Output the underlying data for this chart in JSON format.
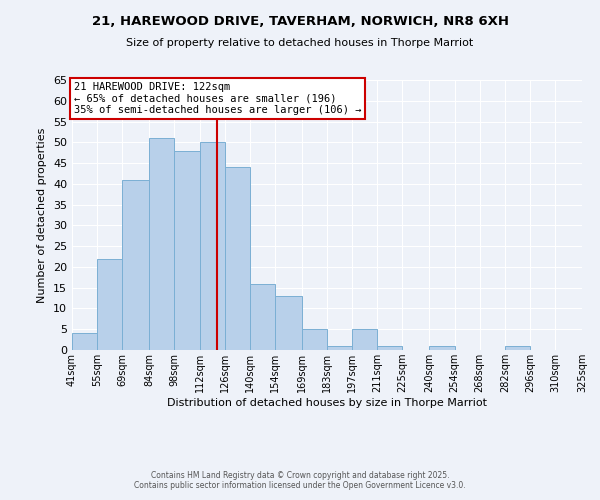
{
  "title": "21, HAREWOOD DRIVE, TAVERHAM, NORWICH, NR8 6XH",
  "subtitle": "Size of property relative to detached houses in Thorpe Marriot",
  "xlabel": "Distribution of detached houses by size in Thorpe Marriot",
  "ylabel": "Number of detached properties",
  "bar_values": [
    4,
    22,
    41,
    51,
    48,
    50,
    44,
    16,
    13,
    5,
    1,
    5,
    1,
    0,
    1,
    0,
    0,
    1,
    0,
    0
  ],
  "bin_edges": [
    41,
    55,
    69,
    84,
    98,
    112,
    126,
    140,
    154,
    169,
    183,
    197,
    211,
    225,
    240,
    254,
    268,
    282,
    296,
    310,
    325
  ],
  "bin_labels": [
    "41sqm",
    "55sqm",
    "69sqm",
    "84sqm",
    "98sqm",
    "112sqm",
    "126sqm",
    "140sqm",
    "154sqm",
    "169sqm",
    "183sqm",
    "197sqm",
    "211sqm",
    "225sqm",
    "240sqm",
    "254sqm",
    "268sqm",
    "282sqm",
    "296sqm",
    "310sqm",
    "325sqm"
  ],
  "bar_color": "#b8d0ea",
  "bar_edge_color": "#7bafd4",
  "vline_x": 122,
  "vline_color": "#cc0000",
  "ylim": [
    0,
    65
  ],
  "yticks": [
    0,
    5,
    10,
    15,
    20,
    25,
    30,
    35,
    40,
    45,
    50,
    55,
    60,
    65
  ],
  "annotation_title": "21 HAREWOOD DRIVE: 122sqm",
  "annotation_line1": "← 65% of detached houses are smaller (196)",
  "annotation_line2": "35% of semi-detached houses are larger (106) →",
  "annotation_box_color": "#ffffff",
  "annotation_box_edge_color": "#cc0000",
  "background_color": "#eef2f9",
  "grid_color": "#ffffff",
  "footer1": "Contains HM Land Registry data © Crown copyright and database right 2025.",
  "footer2": "Contains public sector information licensed under the Open Government Licence v3.0."
}
